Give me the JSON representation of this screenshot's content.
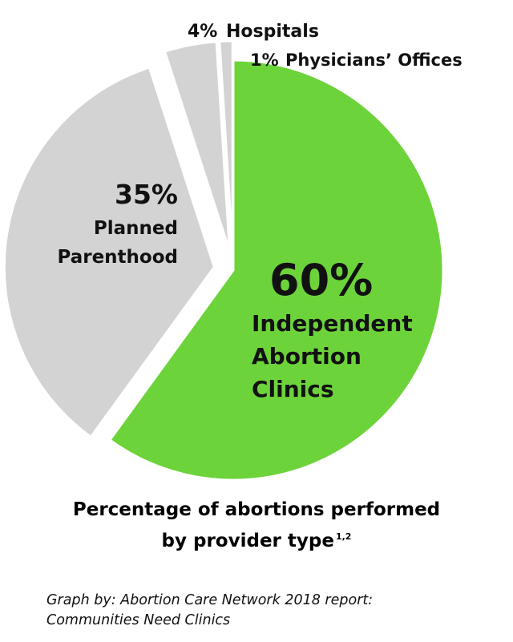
{
  "chart_data": {
    "type": "pie",
    "series": [
      {
        "name": "Independent Abortion Clinics",
        "value": 60,
        "pct_label": "60%",
        "label_lines": [
          "Independent",
          "Abortion",
          "Clinics"
        ],
        "color": "#6cd33a",
        "exploded": false
      },
      {
        "name": "Planned Parenthood",
        "value": 35,
        "pct_label": "35%",
        "label_lines": [
          "Planned",
          "Parenthood"
        ],
        "color": "#d3d3d3",
        "exploded": true
      },
      {
        "name": "Hospitals",
        "value": 4,
        "pct_label": "4%",
        "label_lines": [
          "Hospitals"
        ],
        "color": "#d3d3d3",
        "exploded": true
      },
      {
        "name": "Physicians' Offices",
        "value": 1,
        "pct_label": "1%",
        "label_lines": [
          "Physicians’ Offices"
        ],
        "color": "#d3d3d3",
        "exploded": true
      }
    ],
    "title": "Percentage of abortions performed by provider type",
    "title_lines": [
      "Percentage of abortions performed",
      "by provider type"
    ],
    "title_superscript": "1,2"
  },
  "source": {
    "line1": "Graph by: Abortion Care Network 2018 report:",
    "line2": "Communities Need Clinics"
  }
}
